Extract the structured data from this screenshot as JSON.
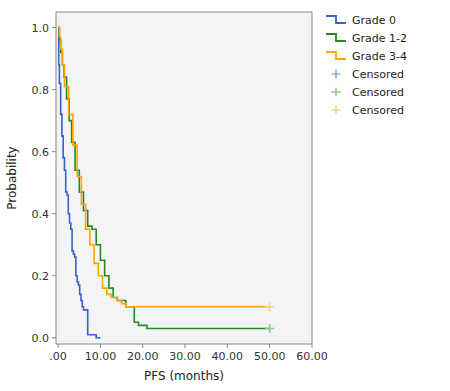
{
  "chart_data": {
    "type": "line",
    "xlabel": "PFS (months)",
    "ylabel": "Probability",
    "xlim": [
      -0.5,
      60
    ],
    "ylim": [
      -0.02,
      1.05
    ],
    "xticks": [
      {
        "value": 0,
        "label": ".00"
      },
      {
        "value": 10,
        "label": "10.00"
      },
      {
        "value": 20,
        "label": "20.00"
      },
      {
        "value": 30,
        "label": "30.00"
      },
      {
        "value": 40,
        "label": "40.00"
      },
      {
        "value": 50,
        "label": "50.00"
      },
      {
        "value": 60,
        "label": "60.00"
      }
    ],
    "yticks": [
      {
        "value": 0.0,
        "label": "0.0"
      },
      0.2,
      0.4,
      0.6,
      0.8,
      {
        "value": 1.0,
        "label": "1.0"
      }
    ],
    "grid": false,
    "legend": "right",
    "series": [
      {
        "name": "Grade 0",
        "type": "line",
        "line_style": "step",
        "color": "#3a5fcd",
        "x": [
          0,
          0.15,
          0.3,
          0.6,
          0.9,
          1.2,
          1.5,
          1.8,
          2.1,
          2.4,
          2.7,
          3.0,
          3.3,
          3.6,
          3.9,
          4.2,
          4.5,
          4.8,
          5.1,
          5.4,
          5.7,
          6.0,
          6.5,
          7.0,
          8.0,
          9.0,
          10.0
        ],
        "values": [
          1.0,
          0.88,
          0.82,
          0.72,
          0.65,
          0.58,
          0.54,
          0.47,
          0.46,
          0.4,
          0.37,
          0.35,
          0.28,
          0.27,
          0.26,
          0.2,
          0.18,
          0.17,
          0.14,
          0.12,
          0.1,
          0.09,
          0.09,
          0.01,
          0.01,
          0.0,
          0.0
        ]
      },
      {
        "name": "Grade 1-2",
        "type": "line",
        "line_style": "step",
        "color": "#228b22",
        "x": [
          0,
          0.3,
          0.6,
          1.0,
          1.4,
          2.0,
          2.6,
          3.2,
          4.0,
          5.0,
          6.0,
          7.0,
          8.0,
          9.0,
          10.0,
          11.0,
          12.0,
          13.0,
          14.0,
          15.0,
          16.0,
          17.0,
          18.0,
          19.0,
          20.0,
          21.0,
          50.0
        ],
        "values": [
          1.0,
          0.96,
          0.92,
          0.88,
          0.84,
          0.77,
          0.7,
          0.63,
          0.54,
          0.47,
          0.41,
          0.36,
          0.35,
          0.3,
          0.25,
          0.2,
          0.16,
          0.13,
          0.12,
          0.12,
          0.1,
          0.1,
          0.05,
          0.04,
          0.04,
          0.03,
          0.03
        ]
      },
      {
        "name": "Grade 3-4",
        "type": "line",
        "line_style": "step",
        "color": "#ffa500",
        "x": [
          0,
          0.3,
          0.6,
          1.0,
          1.5,
          2.5,
          3.5,
          4.5,
          5.5,
          6.5,
          7.5,
          8.5,
          9.5,
          10.5,
          11.5,
          12.5,
          13.0,
          14.0,
          15.0,
          16.0,
          17.0,
          18.0,
          50.0
        ],
        "values": [
          1.0,
          0.97,
          0.93,
          0.88,
          0.81,
          0.72,
          0.62,
          0.52,
          0.43,
          0.35,
          0.3,
          0.24,
          0.2,
          0.16,
          0.14,
          0.13,
          0.13,
          0.12,
          0.11,
          0.1,
          0.1,
          0.1,
          0.1
        ]
      },
      {
        "name": "Censored",
        "type": "scatter",
        "marker": "plus",
        "color": "#8ab0e0",
        "x": [],
        "values": []
      },
      {
        "name": "Censored",
        "type": "scatter",
        "marker": "plus",
        "color": "#88cc88",
        "x": [
          50.0
        ],
        "values": [
          0.03
        ]
      },
      {
        "name": "Censored",
        "type": "scatter",
        "marker": "plus",
        "color": "#ffd080",
        "x": [
          50.0
        ],
        "values": [
          0.1
        ]
      }
    ]
  }
}
